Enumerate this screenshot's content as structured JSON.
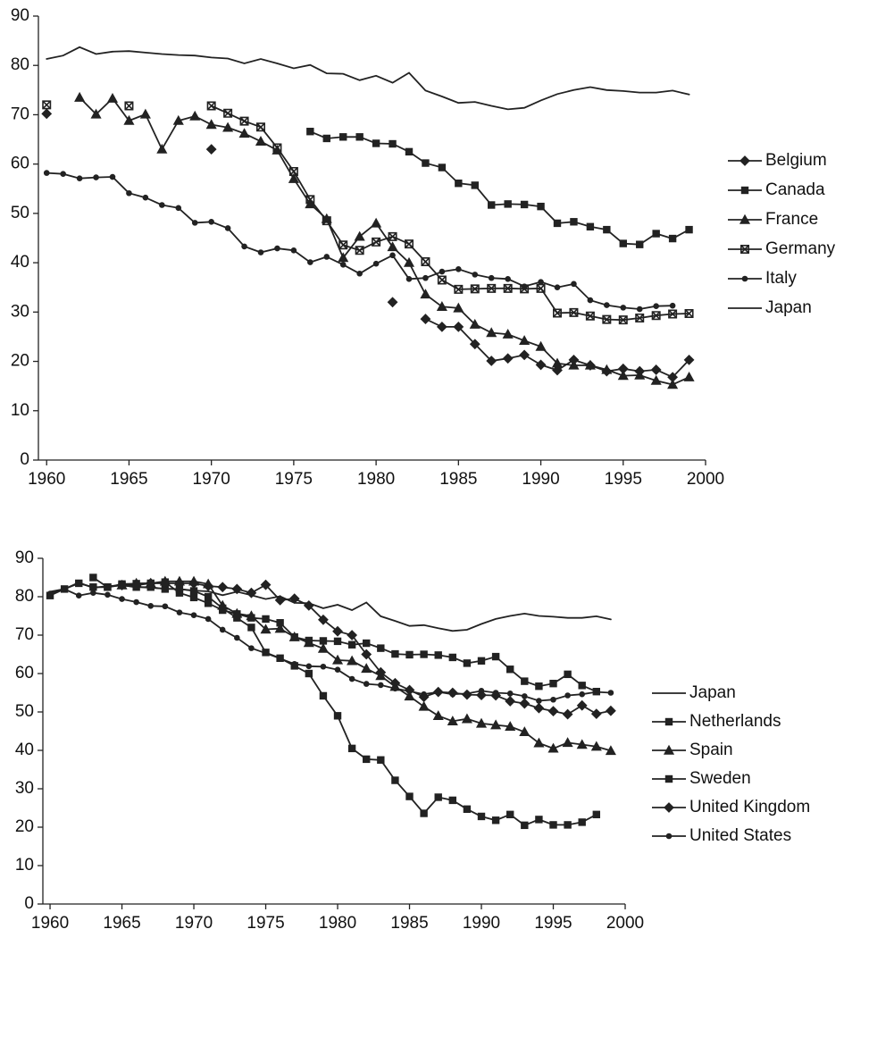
{
  "chart_data": [
    {
      "type": "line",
      "x": [
        1960,
        1961,
        1962,
        1963,
        1964,
        1965,
        1966,
        1967,
        1968,
        1969,
        1970,
        1971,
        1972,
        1973,
        1974,
        1975,
        1976,
        1977,
        1978,
        1979,
        1980,
        1981,
        1982,
        1983,
        1984,
        1985,
        1986,
        1987,
        1988,
        1989,
        1990,
        1991,
        1992,
        1993,
        1994,
        1995,
        1996,
        1997,
        1998,
        1999
      ],
      "xlim": [
        1959.5,
        2000
      ],
      "xticks": [
        1960,
        1965,
        1970,
        1975,
        1980,
        1985,
        1990,
        1995,
        2000
      ],
      "ylim": [
        0,
        90
      ],
      "yticks": [
        0,
        10,
        20,
        30,
        40,
        50,
        60,
        70,
        80,
        90
      ],
      "legend": "right",
      "series": [
        {
          "name": "Belgium",
          "color": "#222222",
          "marker": "diamond",
          "values": [
            70.2,
            null,
            null,
            null,
            null,
            null,
            null,
            null,
            null,
            null,
            63,
            null,
            null,
            null,
            null,
            null,
            null,
            null,
            null,
            null,
            null,
            32,
            null,
            28.6,
            27,
            27,
            23.5,
            20.1,
            20.6,
            21.3,
            19.3,
            18.2,
            20.3,
            19.2,
            18,
            18.5,
            18,
            18.3,
            16.8,
            20.3
          ]
        },
        {
          "name": "Canada",
          "color": "#222222",
          "marker": "square",
          "values": [
            null,
            null,
            null,
            null,
            null,
            null,
            null,
            null,
            null,
            null,
            null,
            null,
            null,
            null,
            null,
            null,
            66.6,
            65.2,
            65.5,
            65.5,
            64.2,
            64.1,
            62.5,
            60.2,
            59.3,
            56.1,
            55.7,
            51.7,
            51.9,
            51.8,
            51.4,
            48,
            48.3,
            47.3,
            46.7,
            43.9,
            43.7,
            45.9,
            44.9,
            46.7
          ]
        },
        {
          "name": "France",
          "color": "#222222",
          "marker": "triangle",
          "values": [
            null,
            null,
            73.5,
            70.1,
            73.3,
            68.8,
            70.1,
            63,
            68.8,
            69.7,
            68,
            67.4,
            66.2,
            64.6,
            62.8,
            57,
            51.9,
            48.9,
            41,
            45.3,
            48,
            43.2,
            40,
            33.6,
            31.1,
            30.8,
            27.5,
            25.8,
            25.5,
            24.2,
            23,
            19.6,
            19.2,
            19.2,
            18.3,
            17.1,
            17.2,
            16.1,
            15.3,
            16.8
          ]
        },
        {
          "name": "Germany",
          "color": "#222222",
          "marker": "xsquare",
          "values": [
            72,
            null,
            null,
            null,
            null,
            71.8,
            null,
            null,
            null,
            null,
            71.8,
            70.3,
            68.7,
            67.5,
            63.3,
            58.5,
            52.8,
            48.5,
            43.6,
            42.5,
            44.2,
            45.3,
            43.8,
            40.2,
            36.5,
            34.6,
            34.7,
            34.8,
            34.8,
            34.7,
            34.8,
            29.8,
            29.9,
            29.2,
            28.5,
            28.4,
            28.8,
            29.3,
            29.6,
            29.7
          ]
        },
        {
          "name": "Italy",
          "color": "#222222",
          "marker": "circle",
          "values": [
            58.2,
            58,
            57.1,
            57.3,
            57.4,
            54.1,
            53.2,
            51.7,
            51.1,
            48.1,
            48.3,
            47,
            43.3,
            42.1,
            42.9,
            42.5,
            40.1,
            41.2,
            39.6,
            37.8,
            39.8,
            41.5,
            36.7,
            36.9,
            38.2,
            38.7,
            37.6,
            36.9,
            36.7,
            35.2,
            36.1,
            35,
            35.7,
            32.4,
            31.4,
            30.9,
            30.6,
            31.2,
            31.3,
            null
          ]
        },
        {
          "name": "Japan",
          "color": "#222222",
          "marker": "none",
          "values": [
            81.3,
            82,
            83.7,
            82.3,
            82.8,
            82.9,
            82.6,
            82.3,
            82.1,
            82,
            81.6,
            81.4,
            80.4,
            81.3,
            80.4,
            79.4,
            80.1,
            78.4,
            78.3,
            77,
            77.9,
            76.5,
            78.5,
            74.9,
            73.7,
            72.4,
            72.6,
            71.8,
            71.1,
            71.4,
            72.9,
            74.2,
            75,
            75.6,
            75,
            74.8,
            74.5,
            74.5,
            74.9,
            74.1
          ]
        }
      ]
    },
    {
      "type": "line",
      "x": [
        1960,
        1961,
        1962,
        1963,
        1964,
        1965,
        1966,
        1967,
        1968,
        1969,
        1970,
        1971,
        1972,
        1973,
        1974,
        1975,
        1976,
        1977,
        1978,
        1979,
        1980,
        1981,
        1982,
        1983,
        1984,
        1985,
        1986,
        1987,
        1988,
        1989,
        1990,
        1991,
        1992,
        1993,
        1994,
        1995,
        1996,
        1997,
        1998,
        1999
      ],
      "xlim": [
        1959.5,
        2000
      ],
      "xticks": [
        1960,
        1965,
        1970,
        1975,
        1980,
        1985,
        1990,
        1995,
        2000
      ],
      "ylim": [
        0,
        90
      ],
      "yticks": [
        0,
        10,
        20,
        30,
        40,
        50,
        60,
        70,
        80,
        90
      ],
      "legend": "right",
      "series": [
        {
          "name": "Japan",
          "color": "#222222",
          "marker": "none",
          "values": [
            81.3,
            82,
            83.7,
            82.3,
            82.8,
            82.9,
            82.6,
            82.3,
            82.1,
            82,
            81.6,
            81.4,
            80.4,
            81.3,
            80.4,
            79.4,
            80.1,
            78.4,
            78.3,
            77,
            77.9,
            76.5,
            78.5,
            74.9,
            73.7,
            72.4,
            72.6,
            71.8,
            71.1,
            71.4,
            72.9,
            74.2,
            75,
            75.6,
            75,
            74.8,
            74.5,
            74.5,
            74.9,
            74.1
          ]
        },
        {
          "name": "Netherlands",
          "color": "#222222",
          "marker": "square",
          "values": [
            null,
            null,
            null,
            85,
            82.5,
            83.3,
            83.4,
            83.5,
            83.8,
            81,
            79.8,
            78.3,
            76.5,
            75.5,
            74.5,
            74.2,
            73.2,
            69.5,
            68.6,
            68.5,
            68.4,
            67.5,
            67.9,
            66.6,
            65.1,
            64.9,
            65,
            64.8,
            64.2,
            62.7,
            63.3,
            64.4,
            61.1,
            58,
            56.7,
            57.4,
            59.8,
            56.9,
            55.3,
            null
          ]
        },
        {
          "name": "Spain",
          "color": "#222222",
          "marker": "triangle",
          "values": [
            null,
            null,
            null,
            null,
            null,
            83,
            83.5,
            83.5,
            84,
            84,
            84,
            83.3,
            77.7,
            75.6,
            75,
            71.5,
            71.7,
            69.5,
            68,
            66.5,
            63.5,
            63.3,
            61.3,
            59.4,
            56.6,
            54.1,
            51.4,
            49,
            47.6,
            48.2,
            47,
            46.6,
            46.2,
            44.8,
            41.9,
            40.5,
            42,
            41.5,
            41,
            39.9
          ]
        },
        {
          "name": "Sweden",
          "color": "#222222",
          "marker": "square",
          "values": [
            80.3,
            82,
            83.5,
            82.5,
            82.5,
            83,
            82.5,
            82.5,
            82,
            82,
            81.5,
            80,
            77,
            74.5,
            72,
            65.5,
            64,
            62,
            60,
            54.2,
            49,
            40.5,
            37.7,
            37.5,
            32.2,
            28,
            23.6,
            27.8,
            27,
            24.7,
            22.8,
            21.8,
            23.3,
            20.5,
            22,
            20.6,
            20.6,
            21.3,
            23.3,
            null
          ]
        },
        {
          "name": "United Kingdom",
          "color": "#222222",
          "marker": "diamond",
          "values": [
            null,
            null,
            null,
            null,
            null,
            83,
            83,
            83.5,
            83.5,
            83.5,
            83.5,
            82.8,
            82.5,
            82,
            81,
            83.1,
            79.1,
            79.5,
            77.7,
            74,
            71,
            70,
            65,
            60.3,
            57.5,
            55.7,
            53.9,
            55.2,
            55,
            54.5,
            54.4,
            54.3,
            52.8,
            52.2,
            51,
            50.2,
            49.4,
            51.7,
            49.5,
            50.3
          ]
        },
        {
          "name": "United States",
          "color": "#222222",
          "marker": "circle",
          "values": [
            80.8,
            82,
            80.3,
            81,
            80.5,
            79.4,
            78.6,
            77.6,
            77.5,
            75.9,
            75.2,
            74.2,
            71.4,
            69.3,
            66.6,
            65.3,
            63.9,
            62.5,
            61.9,
            61.8,
            61,
            58.6,
            57.3,
            57,
            56.1,
            55.4,
            54.6,
            55.2,
            54.6,
            54.8,
            55.5,
            55,
            54.8,
            54.1,
            52.9,
            53.2,
            54.3,
            54.6,
            55.2,
            55
          ]
        }
      ]
    }
  ]
}
